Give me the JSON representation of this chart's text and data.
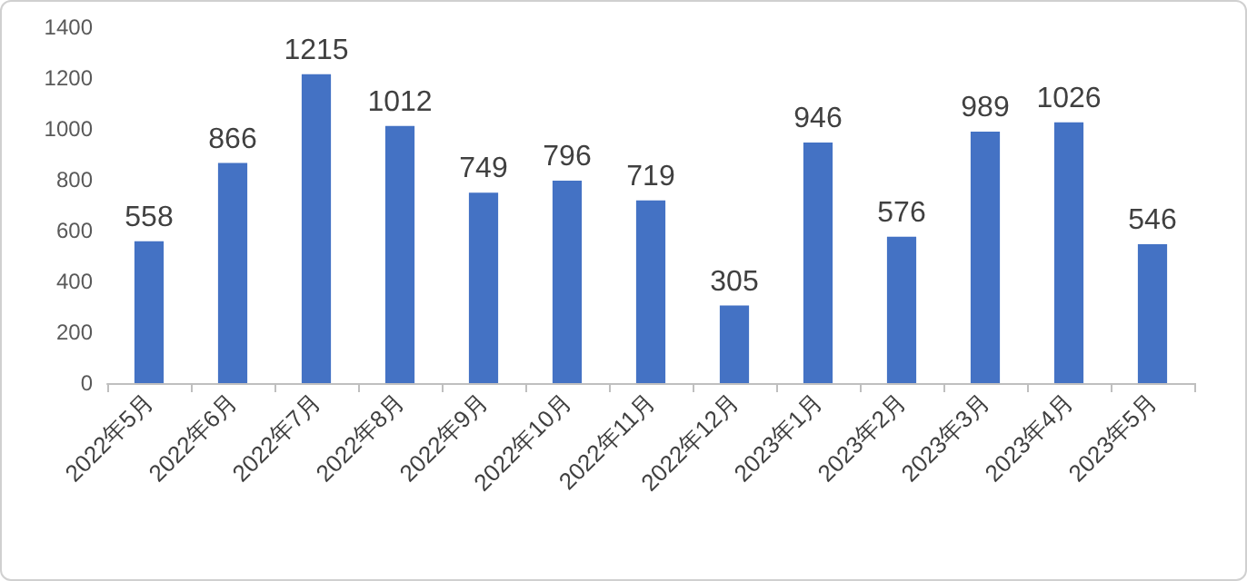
{
  "chart_data": {
    "type": "bar",
    "categories": [
      "2022年5月",
      "2022年6月",
      "2022年7月",
      "2022年8月",
      "2022年9月",
      "2022年10月",
      "2022年11月",
      "2022年12月",
      "2023年1月",
      "2023年2月",
      "2023年3月",
      "2023年4月",
      "2023年5月"
    ],
    "values": [
      558,
      866,
      1215,
      1012,
      749,
      796,
      719,
      305,
      946,
      576,
      989,
      1026,
      546
    ],
    "color": "#4472c4",
    "ylim": [
      0,
      1400
    ],
    "yticks": [
      0,
      200,
      400,
      600,
      800,
      1000,
      1200,
      1400
    ],
    "data_labels": true
  }
}
